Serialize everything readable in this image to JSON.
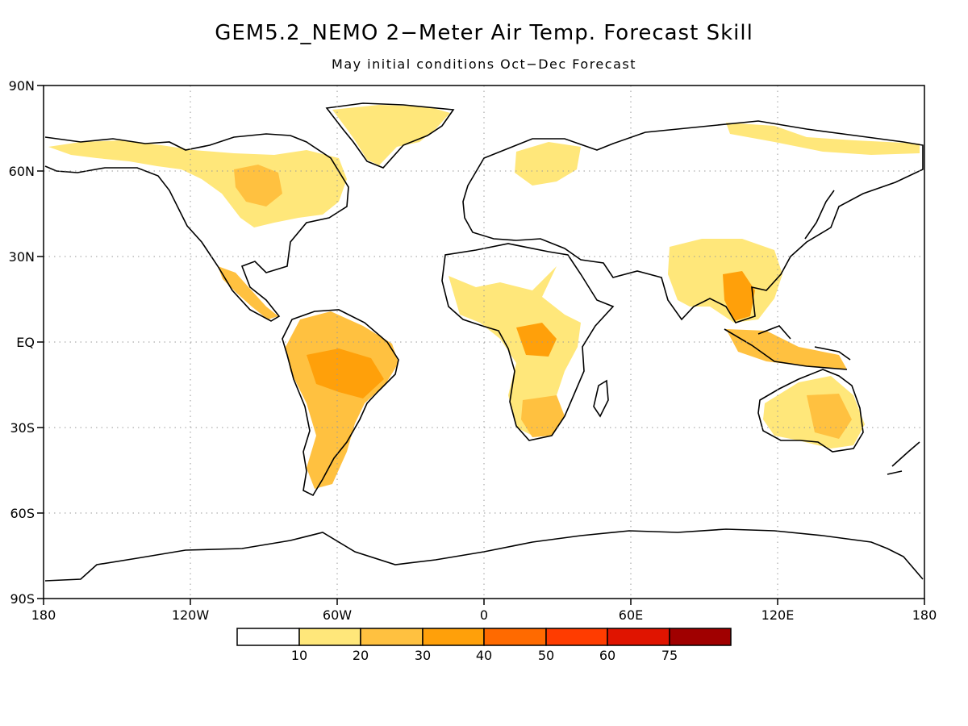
{
  "title": "GEM5.2_NEMO 2−Meter Air Temp. Forecast Skill",
  "subtitle": "May initial conditions   Oct−Dec Forecast",
  "axes": {
    "lat_labels": [
      "90N",
      "60N",
      "30N",
      "EQ",
      "30S",
      "60S",
      "90S"
    ],
    "lon_labels": [
      "180",
      "120W",
      "60W",
      "0",
      "60E",
      "120E",
      "180"
    ]
  },
  "colorbar": {
    "labels": [
      "10",
      "20",
      "30",
      "40",
      "50",
      "60",
      "75"
    ],
    "colors": [
      "#ffffff",
      "#ffe77a",
      "#ffc140",
      "#ffa00a",
      "#ff6a00",
      "#ff3c00",
      "#e01400",
      "#a00000"
    ]
  },
  "map": {
    "projection": "cylindrical equidistant",
    "extent": {
      "lon": [
        -180,
        180
      ],
      "lat": [
        -90,
        90
      ]
    },
    "grid_lines": "dotted",
    "skill_regions": [
      {
        "name": "alaska-canada",
        "level": 1
      },
      {
        "name": "greenland",
        "level": 1
      },
      {
        "name": "central-america",
        "level": 2
      },
      {
        "name": "amazon",
        "level": 3
      },
      {
        "name": "southern-africa",
        "level": 2
      },
      {
        "name": "central-africa",
        "level": 3
      },
      {
        "name": "southeast-asia",
        "level": 3
      },
      {
        "name": "australia",
        "level": 2
      }
    ]
  }
}
